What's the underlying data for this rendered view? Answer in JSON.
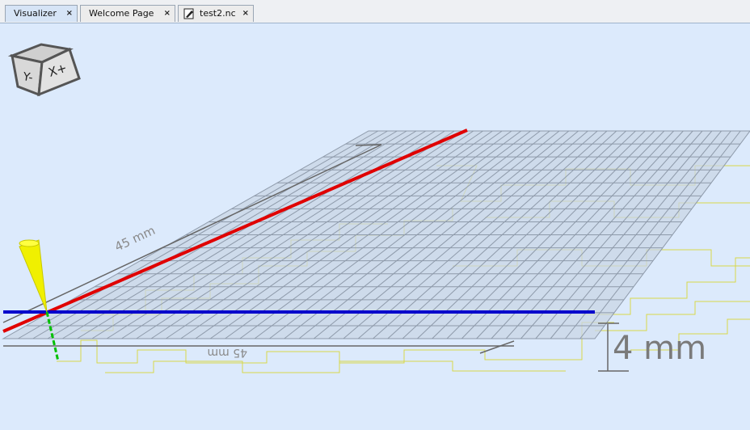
{
  "tabs": [
    {
      "label": "Visualizer",
      "active": true
    },
    {
      "label": "Welcome Page",
      "active": false
    },
    {
      "label": "test2.nc",
      "active": false,
      "icon": "edit-file-icon"
    }
  ],
  "tab_close_glyph": "×",
  "view_cube": {
    "front_label": "Y-",
    "side_label": "X+"
  },
  "dimensions": {
    "height_label": "4 mm",
    "width_label": "45 mm",
    "depth_label": "45 mm"
  },
  "colors": {
    "x_axis": "#e00000",
    "y_axis": "#0000cc",
    "z_axis": "#00c000",
    "toolpath": "#d8d84a",
    "grid_line": "#8e9aaa",
    "grid_fill": "#c9d5e6",
    "tool_cone": "#f0f000"
  }
}
